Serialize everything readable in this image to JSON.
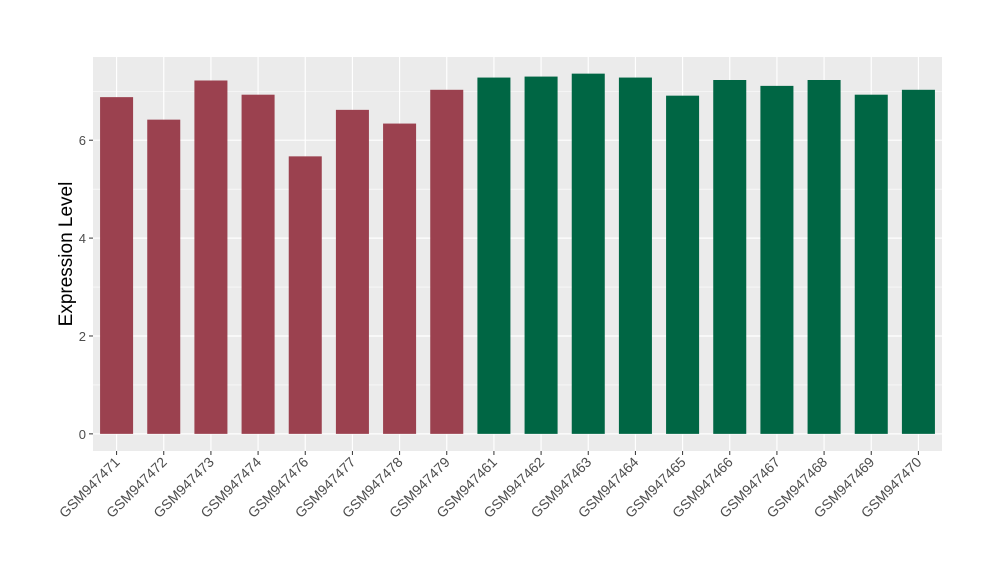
{
  "chart_data": {
    "type": "bar",
    "title": "",
    "xlabel": "",
    "ylabel": "Expression Level",
    "ylim": [
      -0.35,
      7.7
    ],
    "yticks": [
      0,
      2,
      4,
      6
    ],
    "grid": true,
    "legend": "none",
    "colors": {
      "group_a": "#9B414F",
      "group_b": "#006644",
      "panel_background": "#EBEBEB",
      "gridline": "#FFFFFF",
      "text": "#000000",
      "tick_text": "#4D4D4D"
    },
    "categories": [
      "GSM947471",
      "GSM947472",
      "GSM947473",
      "GSM947474",
      "GSM947476",
      "GSM947477",
      "GSM947478",
      "GSM947479",
      "GSM947461",
      "GSM947462",
      "GSM947463",
      "GSM947464",
      "GSM947465",
      "GSM947466",
      "GSM947467",
      "GSM947468",
      "GSM947469",
      "GSM947470"
    ],
    "values": [
      6.88,
      6.42,
      7.22,
      6.93,
      5.67,
      6.62,
      6.34,
      7.03,
      7.28,
      7.3,
      7.36,
      7.28,
      6.91,
      7.23,
      7.11,
      7.23,
      6.93,
      7.03
    ],
    "groups": [
      "a",
      "a",
      "a",
      "a",
      "a",
      "a",
      "a",
      "a",
      "b",
      "b",
      "b",
      "b",
      "b",
      "b",
      "b",
      "b",
      "b",
      "b"
    ]
  }
}
